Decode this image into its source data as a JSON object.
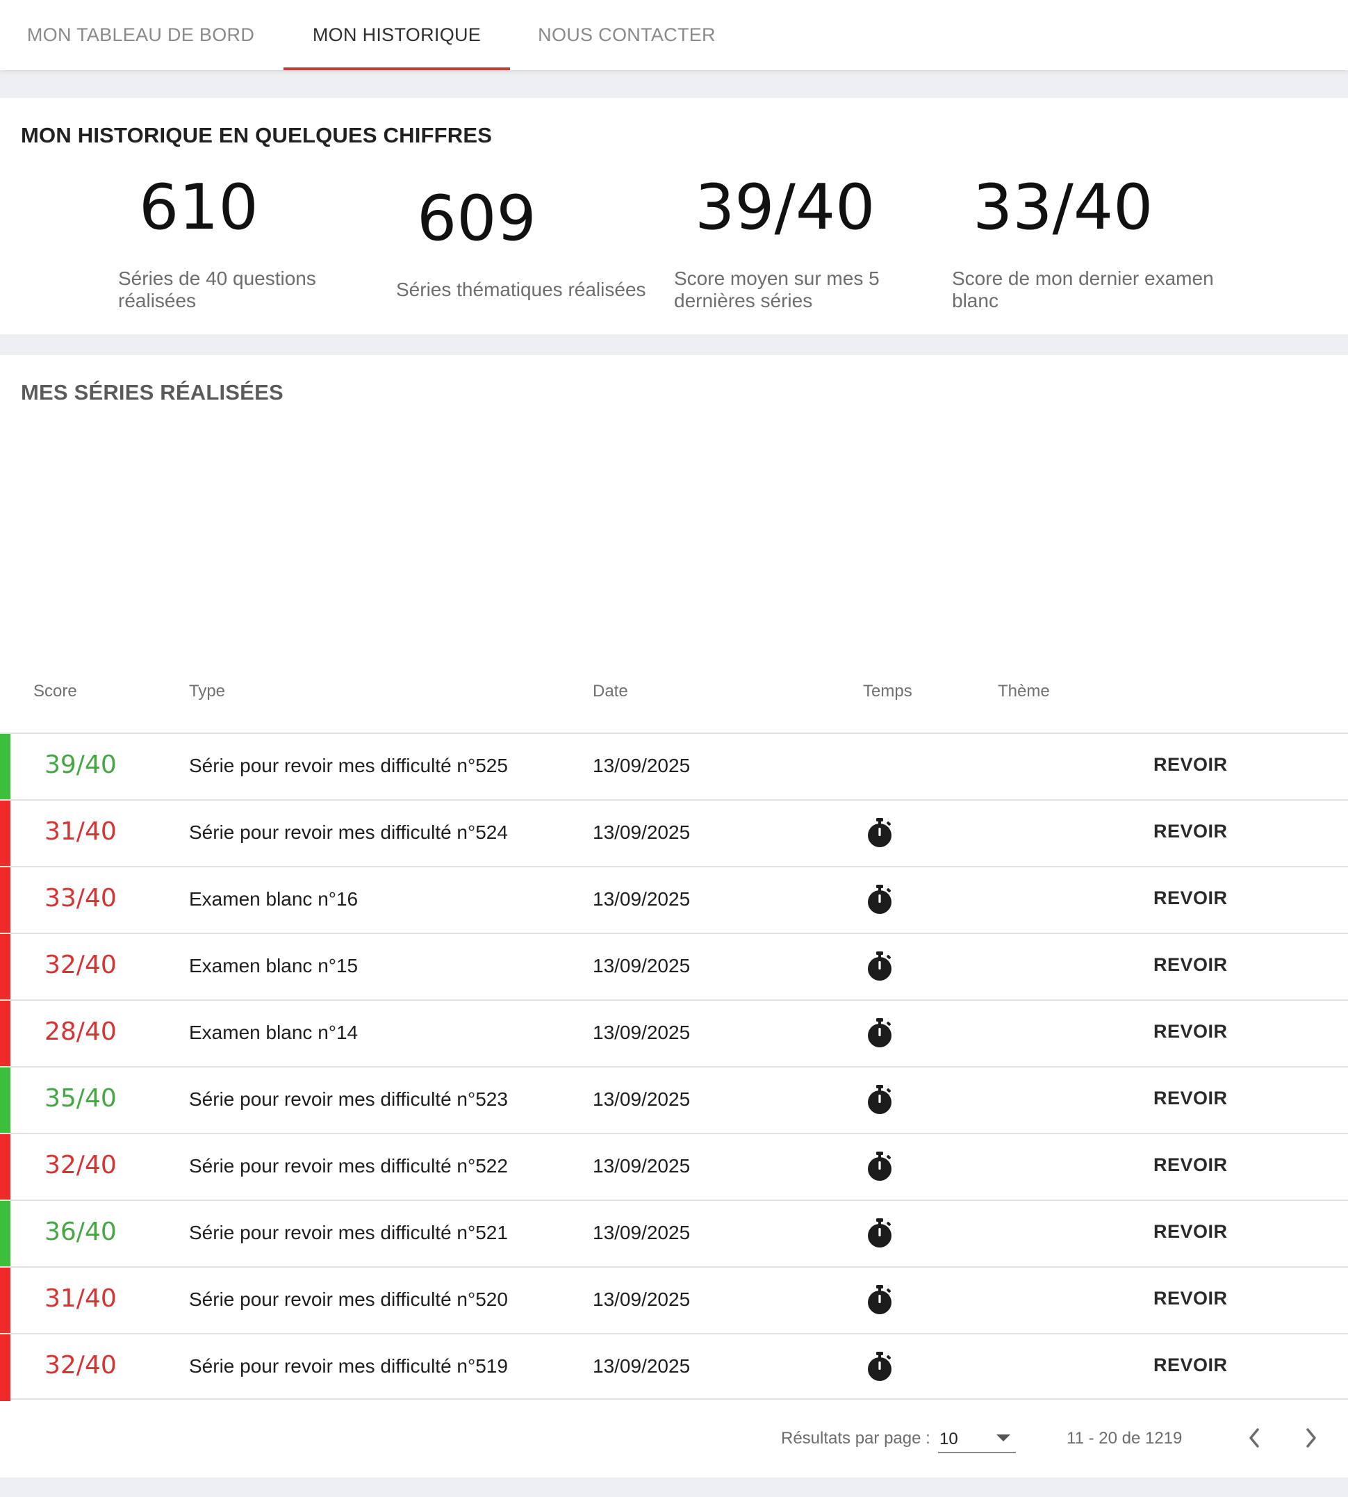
{
  "nav": {
    "tabs": [
      {
        "label": "MON TABLEAU DE BORD",
        "active": false
      },
      {
        "label": "MON HISTORIQUE",
        "active": true
      },
      {
        "label": "NOUS CONTACTER",
        "active": false
      }
    ]
  },
  "stats": {
    "title": "MON HISTORIQUE EN QUELQUES CHIFFRES",
    "items": [
      {
        "value": "610",
        "label": "Séries de 40 questions réalisées"
      },
      {
        "value": "609",
        "label": "Séries thématiques réalisées"
      },
      {
        "value": "39/40",
        "label": "Score moyen sur mes 5 dernières séries"
      },
      {
        "value": "33/40",
        "label": "Score de mon dernier examen blanc"
      }
    ]
  },
  "series": {
    "title": "MES SÉRIES RÉALISÉES",
    "columns": {
      "score": "Score",
      "type": "Type",
      "date": "Date",
      "temps": "Temps",
      "theme": "Thème"
    },
    "rows": [
      {
        "score": "39/40",
        "status": "pass",
        "type": "Série pour revoir mes difficulté n°525",
        "date": "13/09/2025",
        "timed": false,
        "action": "REVOIR"
      },
      {
        "score": "31/40",
        "status": "fail",
        "type": "Série pour revoir mes difficulté n°524",
        "date": "13/09/2025",
        "timed": true,
        "action": "REVOIR"
      },
      {
        "score": "33/40",
        "status": "fail",
        "type": "Examen blanc n°16",
        "date": "13/09/2025",
        "timed": true,
        "action": "REVOIR"
      },
      {
        "score": "32/40",
        "status": "fail",
        "type": "Examen blanc n°15",
        "date": "13/09/2025",
        "timed": true,
        "action": "REVOIR"
      },
      {
        "score": "28/40",
        "status": "fail",
        "type": "Examen blanc n°14",
        "date": "13/09/2025",
        "timed": true,
        "action": "REVOIR"
      },
      {
        "score": "35/40",
        "status": "pass",
        "type": "Série pour revoir mes difficulté n°523",
        "date": "13/09/2025",
        "timed": true,
        "action": "REVOIR"
      },
      {
        "score": "32/40",
        "status": "fail",
        "type": "Série pour revoir mes difficulté n°522",
        "date": "13/09/2025",
        "timed": true,
        "action": "REVOIR"
      },
      {
        "score": "36/40",
        "status": "pass",
        "type": "Série pour revoir mes difficulté n°521",
        "date": "13/09/2025",
        "timed": true,
        "action": "REVOIR"
      },
      {
        "score": "31/40",
        "status": "fail",
        "type": "Série pour revoir mes difficulté n°520",
        "date": "13/09/2025",
        "timed": true,
        "action": "REVOIR"
      },
      {
        "score": "32/40",
        "status": "fail",
        "type": "Série pour revoir mes difficulté n°519",
        "date": "13/09/2025",
        "timed": true,
        "action": "REVOIR"
      }
    ]
  },
  "pagination": {
    "per_page_label": "Résultats par page :",
    "per_page_value": "10",
    "range": "11 - 20 de 1219",
    "prev_icon": "chevron-left-icon",
    "next_icon": "chevron-right-icon"
  },
  "colors": {
    "pass": "#43a843",
    "fail": "#d83333",
    "pass_bar": "#3dbf3d",
    "fail_bar": "#f02a2a",
    "tab_accent": "#c93a3a"
  },
  "icons": {
    "timer": "stopwatch-icon"
  }
}
